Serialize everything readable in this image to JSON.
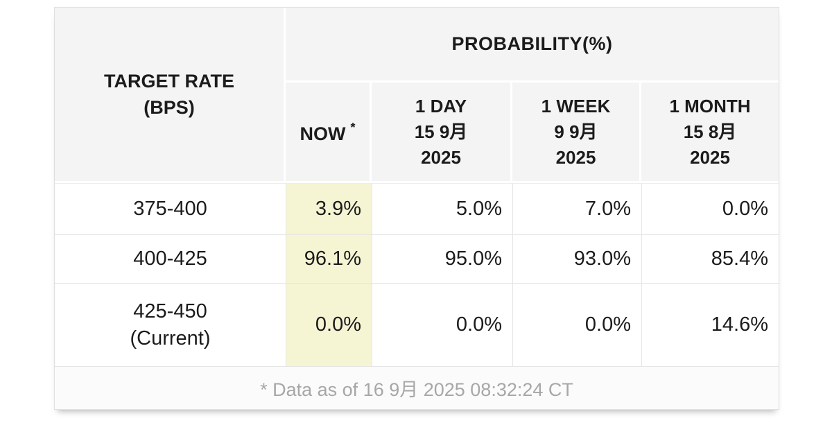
{
  "table": {
    "corner_line1": "TARGET RATE",
    "corner_line2": "(BPS)",
    "probability_header": "PROBABILITY(%)",
    "now_header": {
      "label": "NOW",
      "sup": "*"
    },
    "col_headers": [
      {
        "line1": "1 DAY",
        "line2": "15 9月",
        "line3": "2025"
      },
      {
        "line1": "1 WEEK",
        "line2": "9 9月",
        "line3": "2025"
      },
      {
        "line1": "1 MONTH",
        "line2": "15 8月",
        "line3": "2025"
      }
    ],
    "rows": [
      {
        "rate_line1": "375-400",
        "now": "3.9%",
        "day": "5.0%",
        "week": "7.0%",
        "month": "0.0%"
      },
      {
        "rate_line1": "400-425",
        "now": "96.1%",
        "day": "95.0%",
        "week": "93.0%",
        "month": "85.4%"
      },
      {
        "rate_line1": "425-450",
        "rate_line2": "(Current)",
        "now": "0.0%",
        "day": "0.0%",
        "week": "0.0%",
        "month": "14.6%"
      }
    ],
    "footnote": "* Data as of 16 9月 2025 08:32:24 CT"
  },
  "colors": {
    "header_bg": "#f4f4f4",
    "highlight": "#f5f5d4",
    "border": "#e5e5e5",
    "outer_border": "#e0e0e0",
    "text": "#1b1b1b",
    "footnote_text": "#a7a7a7",
    "footer_bg": "#fbfbfb"
  },
  "chart_data": {
    "type": "table",
    "title": "PROBABILITY(%)",
    "row_header": "TARGET RATE (BPS)",
    "columns": [
      "NOW *",
      "1 DAY 15 9月 2025",
      "1 WEEK 9 9月 2025",
      "1 MONTH 15 8月 2025"
    ],
    "rows": [
      {
        "target_rate": "375-400",
        "values": [
          3.9,
          5.0,
          7.0,
          0.0
        ]
      },
      {
        "target_rate": "400-425",
        "values": [
          96.1,
          95.0,
          93.0,
          85.4
        ]
      },
      {
        "target_rate": "425-450 (Current)",
        "values": [
          0.0,
          0.0,
          0.0,
          14.6
        ]
      }
    ],
    "highlighted_column": "NOW *",
    "footnote": "* Data as of 16 9月 2025 08:32:24 CT"
  }
}
